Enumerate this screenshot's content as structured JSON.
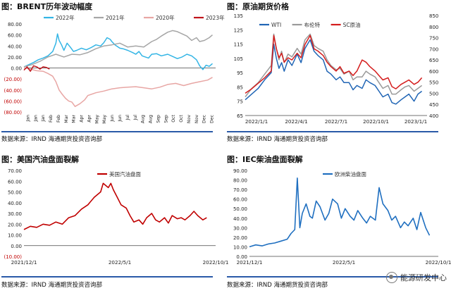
{
  "panels": {
    "p1": {
      "title": "图：BRENT历年波动幅度",
      "source": "数据来源：IRND    海通期货投资咨询部",
      "chart_data": {
        "type": "line",
        "y_ticks": [
          "80.00",
          "60.00",
          "40.00",
          "20.00",
          "0.00",
          "(20.00)",
          "(40.00)",
          "(60.00)",
          "(80.00)"
        ],
        "ylim": [
          -80,
          80
        ],
        "x_ticks": [
          "Jan",
          "Jan",
          "Jan",
          "Feb",
          "Feb",
          "Mar",
          "Mar",
          "Apr",
          "Apr",
          "May",
          "May",
          "Jun",
          "Jun",
          "Jul",
          "Jul",
          "Aug",
          "Aug",
          "Sep",
          "Sep",
          "Oct",
          "Oct",
          "Nov",
          "Nov",
          "Dec",
          "Dec"
        ],
        "x_domain": [
          0,
          12
        ],
        "grid": false,
        "legend": "top",
        "series": [
          {
            "name": "2022年",
            "color": "#33b5e5",
            "x": [
              0,
              0.3,
              0.6,
              0.9,
              1.2,
              1.5,
              1.8,
              2.0,
              2.1,
              2.2,
              2.35,
              2.5,
              2.7,
              2.9,
              3.1,
              3.3,
              3.6,
              3.9,
              4.2,
              4.5,
              4.8,
              5.0,
              5.2,
              5.4,
              5.5,
              5.7,
              6.0,
              6.2,
              6.5,
              6.8,
              7.0,
              7.2,
              7.4,
              7.6,
              7.8,
              8.0,
              8.3,
              8.6,
              9.0,
              9.3,
              9.6,
              9.9,
              10.2,
              10.5,
              10.8,
              11.0,
              11.2,
              11.4,
              11.6,
              11.8
            ],
            "y": [
              2,
              6,
              10,
              15,
              18,
              22,
              30,
              45,
              62,
              50,
              42,
              32,
              45,
              38,
              30,
              32,
              36,
              33,
              37,
              42,
              40,
              46,
              55,
              52,
              48,
              42,
              36,
              35,
              32,
              28,
              25,
              30,
              22,
              20,
              18,
              25,
              26,
              22,
              25,
              21,
              17,
              20,
              25,
              22,
              15,
              4,
              -3,
              5,
              3,
              8
            ]
          },
          {
            "name": "2021年",
            "color": "#a6a6a6",
            "x": [
              0,
              0.5,
              1.0,
              1.5,
              2.0,
              2.5,
              3.0,
              3.5,
              4.0,
              4.5,
              5.0,
              5.5,
              6.0,
              6.5,
              7.0,
              7.5,
              8.0,
              8.3,
              8.6,
              9.0,
              9.3,
              9.6,
              9.9,
              10.2,
              10.5,
              10.8,
              11.0,
              11.3,
              11.6,
              11.8
            ],
            "y": [
              2,
              6,
              12,
              20,
              25,
              20,
              25,
              24,
              28,
              35,
              40,
              42,
              45,
              38,
              40,
              38,
              48,
              52,
              58,
              65,
              68,
              66,
              62,
              58,
              50,
              55,
              48,
              50,
              55,
              60
            ]
          },
          {
            "name": "2020年",
            "color": "#e8a6a4",
            "x": [
              0,
              0.4,
              0.8,
              1.2,
              1.5,
              1.8,
              2.0,
              2.2,
              2.4,
              2.6,
              2.8,
              3.0,
              3.2,
              3.5,
              3.8,
              4.0,
              4.5,
              5.0,
              5.5,
              6.0,
              6.5,
              7.0,
              7.5,
              8.0,
              8.5,
              9.0,
              9.5,
              10.0,
              10.5,
              11.0,
              11.5,
              11.8
            ],
            "y": [
              0,
              -2,
              -5,
              -6,
              -10,
              -15,
              -25,
              -40,
              -48,
              -55,
              -60,
              -62,
              -70,
              -65,
              -58,
              -50,
              -45,
              -42,
              -38,
              -36,
              -35,
              -34,
              -36,
              -38,
              -35,
              -30,
              -28,
              -32,
              -28,
              -25,
              -22,
              -17
            ]
          },
          {
            "name": "2023年",
            "color": "#c0141b",
            "x": [
              0,
              0.2,
              0.4,
              0.6,
              0.8,
              1.0,
              1.2,
              1.4,
              1.6
            ],
            "y": [
              -4,
              2,
              -6,
              4,
              2,
              -2,
              2,
              1,
              -2
            ]
          }
        ]
      }
    },
    "p2": {
      "title": "图：原油期货价格",
      "source": "数据来源：IRND    海通期货投资咨询部",
      "chart_data": {
        "type": "line",
        "y_ticks_left": [
          "135",
          "125",
          "115",
          "105",
          "95",
          "85",
          "75",
          "65"
        ],
        "ylim_left": [
          65,
          135
        ],
        "y_ticks_right": [
          "850",
          "800",
          "750",
          "700",
          "650",
          "600",
          "550",
          "500",
          "450",
          "400"
        ],
        "ylim_right": [
          400,
          850
        ],
        "x_ticks": [
          "2022/1/1",
          "2022/4/1",
          "2022/7/1",
          "2022/10/1",
          "2023/1/1"
        ],
        "x_domain": [
          0,
          14
        ],
        "legend": "top",
        "series": [
          {
            "name": "WTI",
            "axis": "left",
            "color": "#2065b5",
            "x": [
              0,
              0.5,
              1.0,
              1.5,
              2.0,
              2.2,
              2.4,
              2.6,
              2.8,
              3.0,
              3.3,
              3.6,
              4.0,
              4.3,
              4.6,
              5.0,
              5.3,
              5.6,
              6.0,
              6.3,
              6.6,
              7.0,
              7.3,
              7.6,
              8.0,
              8.3,
              8.6,
              9.0,
              9.3,
              9.6,
              10.0,
              10.3,
              10.6,
              11.0,
              11.3,
              11.6,
              12.0,
              12.3,
              12.6,
              13.0,
              13.3,
              13.6
            ],
            "y": [
              76,
              80,
              84,
              90,
              95,
              115,
              105,
              98,
              102,
              96,
              104,
              100,
              108,
              102,
              112,
              118,
              110,
              107,
              104,
              96,
              94,
              90,
              92,
              88,
              88,
              83,
              86,
              84,
              90,
              88,
              86,
              82,
              78,
              80,
              74,
              73,
              76,
              78,
              80,
              75,
              80,
              82
            ]
          },
          {
            "name": "布伦特",
            "axis": "left",
            "color": "#9a9a9a",
            "x": [
              0,
              0.5,
              1.0,
              1.5,
              2.0,
              2.2,
              2.4,
              2.6,
              2.8,
              3.0,
              3.3,
              3.6,
              4.0,
              4.3,
              4.6,
              5.0,
              5.3,
              5.6,
              6.0,
              6.3,
              6.6,
              7.0,
              7.3,
              7.6,
              8.0,
              8.3,
              8.6,
              9.0,
              9.3,
              9.6,
              10.0,
              10.3,
              10.6,
              11.0,
              11.3,
              11.6,
              12.0,
              12.3,
              12.6,
              13.0,
              13.3,
              13.6
            ],
            "y": [
              78,
              84,
              88,
              94,
              100,
              122,
              112,
              104,
              110,
              102,
              108,
              106,
              112,
              108,
              118,
              122,
              114,
              112,
              110,
              104,
              100,
              97,
              98,
              94,
              96,
              90,
              92,
              92,
              96,
              94,
              92,
              88,
              84,
              86,
              80,
              80,
              83,
              85,
              86,
              82,
              84,
              86
            ]
          },
          {
            "name": "SC原油",
            "axis": "right",
            "color": "#d41c1c",
            "x": [
              0,
              0.5,
              1.0,
              1.5,
              2.0,
              2.2,
              2.4,
              2.6,
              2.8,
              3.0,
              3.3,
              3.6,
              4.0,
              4.3,
              4.6,
              5.0,
              5.3,
              5.6,
              6.0,
              6.3,
              6.6,
              7.0,
              7.3,
              7.6,
              8.0,
              8.3,
              8.6,
              9.0,
              9.3,
              9.6,
              10.0,
              10.3,
              10.6,
              11.0,
              11.3,
              11.6,
              12.0,
              12.3,
              12.6,
              13.0,
              13.3,
              13.6
            ],
            "y": [
              500,
              520,
              545,
              570,
              600,
              760,
              700,
              660,
              680,
              640,
              660,
              650,
              680,
              660,
              720,
              760,
              700,
              690,
              670,
              640,
              620,
              600,
              620,
              590,
              600,
              580,
              600,
              650,
              640,
              620,
              600,
              580,
              560,
              570,
              530,
              520,
              540,
              550,
              560,
              540,
              550,
              570
            ]
          }
        ]
      }
    },
    "p3": {
      "title": "图：美国汽油盘面裂解",
      "source": "数据来源：IRND    海通期货投资咨询部",
      "chart_data": {
        "type": "line",
        "y_ticks": [
          "70.00",
          "60.00",
          "50.00",
          "40.00",
          "30.00",
          "20.00",
          "10.00",
          "0.00",
          "(10.00)"
        ],
        "ylim": [
          -10,
          70
        ],
        "x_ticks": [
          "2021/12/1",
          "2022/5/1",
          "2022/10/1"
        ],
        "x_domain": [
          0,
          15
        ],
        "legend": "top",
        "series": [
          {
            "name": "美国汽油盘面",
            "color": "#c00000",
            "x": [
              0,
              0.5,
              1.0,
              1.5,
              2.0,
              2.5,
              3.0,
              3.5,
              4.0,
              4.5,
              5.0,
              5.5,
              6.0,
              6.2,
              6.4,
              6.6,
              6.8,
              7.0,
              7.3,
              7.6,
              8.0,
              8.3,
              8.6,
              9.0,
              9.3,
              9.6,
              10.0,
              10.3,
              10.6,
              11.0,
              11.3,
              11.6,
              12.0,
              12.3,
              12.6,
              13.0,
              13.3,
              13.6,
              14.0,
              14.3
            ],
            "y": [
              15,
              18,
              17,
              20,
              19,
              22,
              20,
              26,
              28,
              34,
              38,
              45,
              50,
              58,
              56,
              54,
              58,
              52,
              45,
              38,
              35,
              28,
              22,
              24,
              20,
              26,
              30,
              24,
              22,
              26,
              21,
              28,
              25,
              26,
              24,
              28,
              32,
              28,
              24,
              26
            ]
          }
        ]
      }
    },
    "p4": {
      "title": "图：IEC柴油盘面裂解",
      "source": "数据来源：IRND    海通期货投资咨询部",
      "chart_data": {
        "type": "line",
        "y_ticks": [
          "90.00",
          "80.00",
          "70.00",
          "60.00",
          "50.00",
          "40.00",
          "30.00",
          "20.00",
          "10.00",
          "0.00"
        ],
        "ylim": [
          0,
          90
        ],
        "x_ticks": [
          "2021/12/1",
          "2022/5/1",
          "2022/10/1"
        ],
        "x_domain": [
          0,
          15
        ],
        "legend": "top",
        "series": [
          {
            "name": "欧洲柴油盘面",
            "color": "#1f6fc0",
            "x": [
              0,
              0.5,
              1.0,
              1.5,
              2.0,
              2.5,
              3.0,
              3.3,
              3.6,
              3.8,
              4.0,
              4.2,
              4.5,
              4.8,
              5.0,
              5.3,
              5.6,
              6.0,
              6.3,
              6.6,
              7.0,
              7.3,
              7.6,
              8.0,
              8.3,
              8.6,
              9.0,
              9.3,
              9.6,
              10.0,
              10.3,
              10.6,
              11.0,
              11.3,
              11.6,
              12.0,
              12.3,
              12.6,
              13.0,
              13.3,
              13.6,
              14.0,
              14.3
            ],
            "y": [
              10,
              12,
              11,
              13,
              14,
              16,
              18,
              24,
              28,
              82,
              30,
              45,
              55,
              42,
              40,
              58,
              52,
              38,
              45,
              60,
              55,
              40,
              50,
              42,
              38,
              48,
              40,
              35,
              42,
              38,
              72,
              55,
              48,
              38,
              42,
              30,
              36,
              32,
              40,
              28,
              46,
              30,
              22
            ]
          }
        ]
      }
    }
  },
  "watermark": {
    "text": "能源研发中心",
    "icon": "wechat-icon"
  }
}
